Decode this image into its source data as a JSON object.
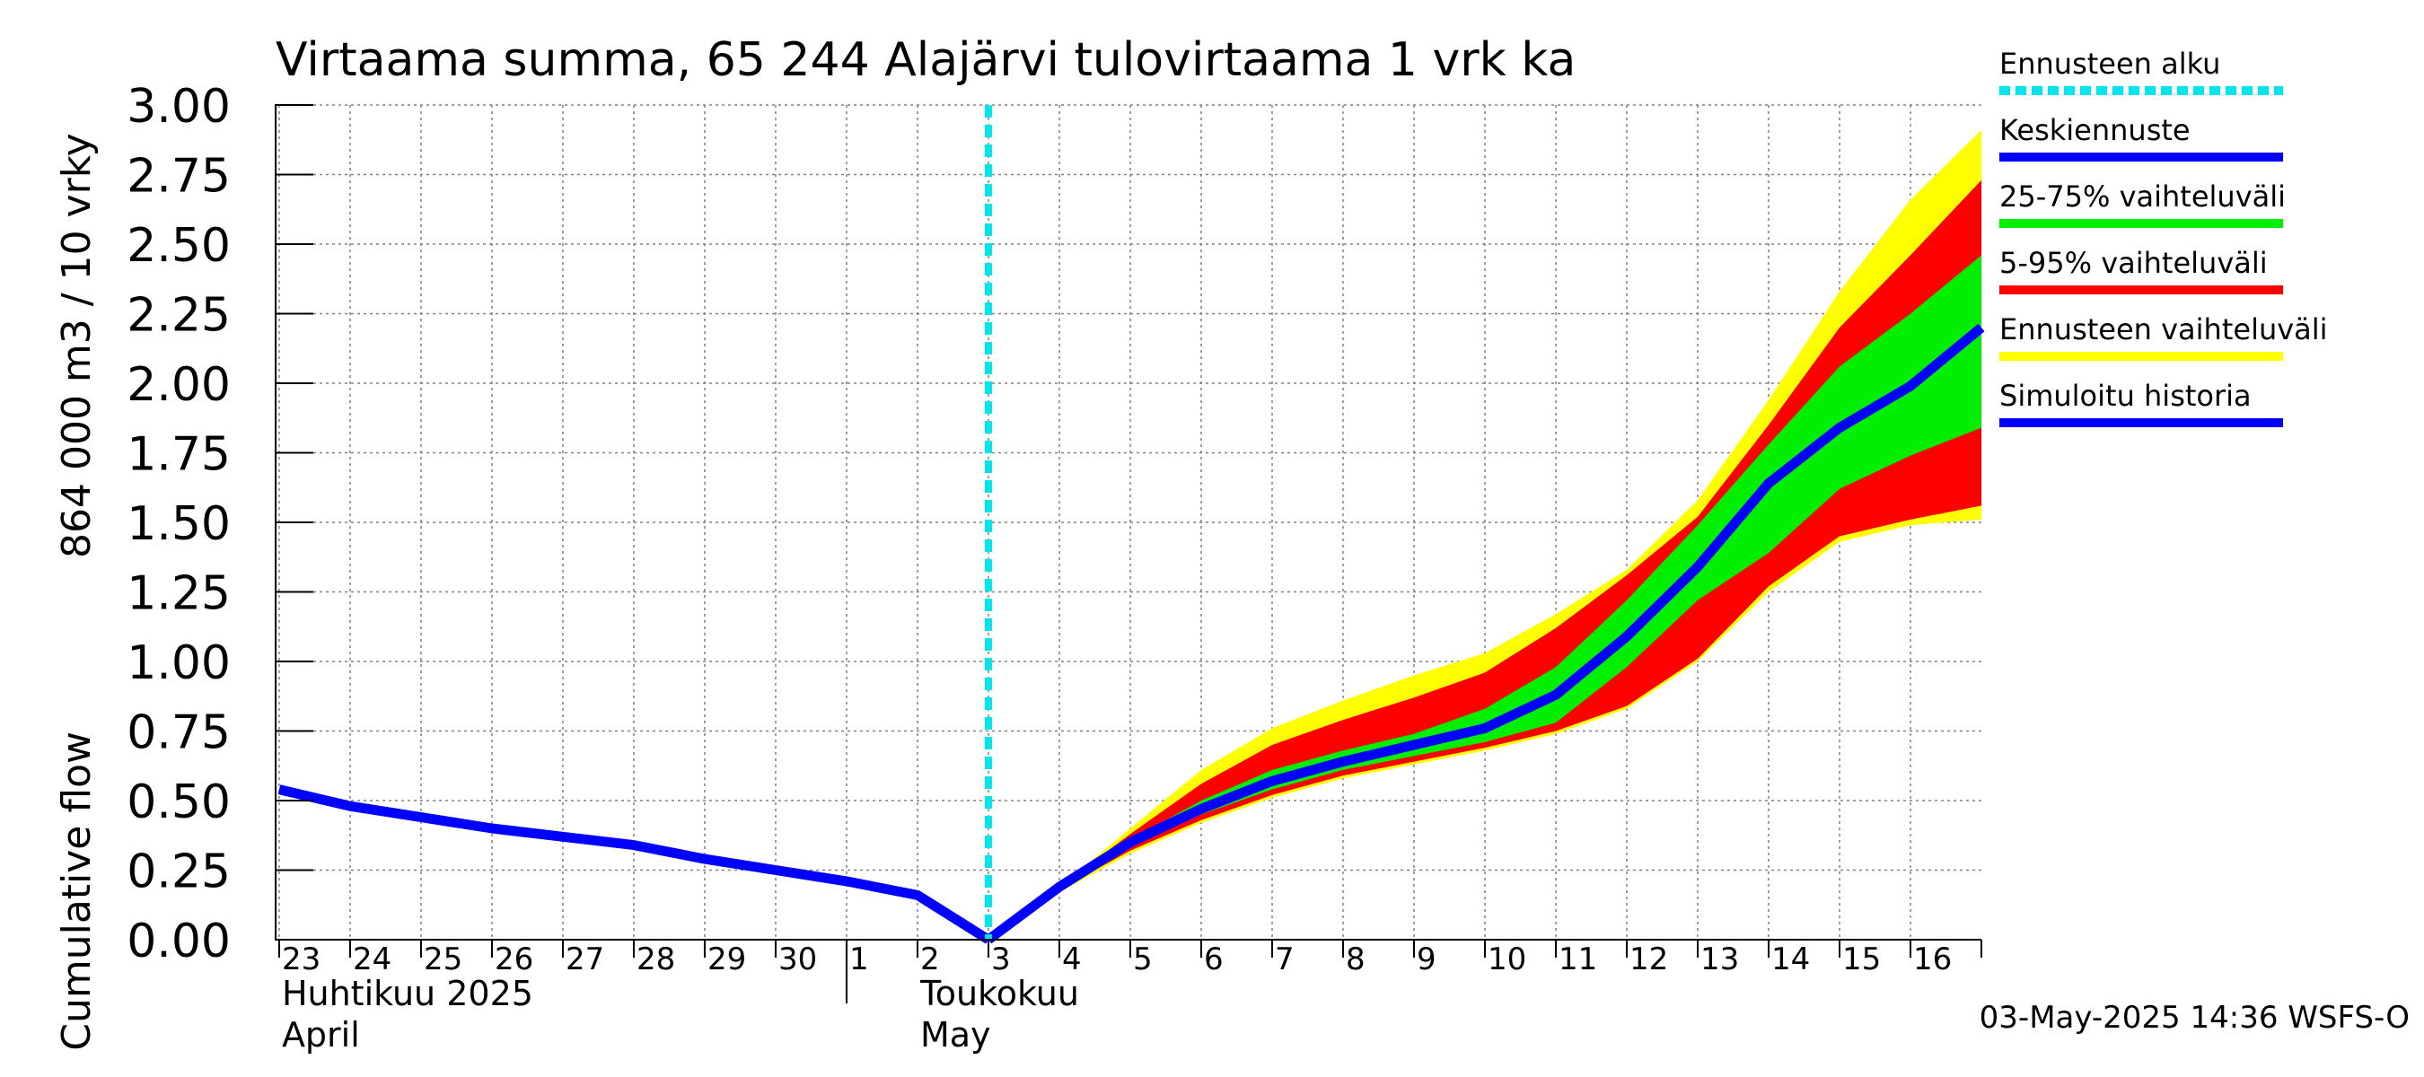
{
  "chart_data": {
    "type": "area",
    "title": "Virtaama summa, 65 244 Alajärvi tulovirtaama 1 vrk ka",
    "ylabel_top": "864 000 m3 / 10 vrky",
    "ylabel_bottom": "Cumulative flow",
    "ylim": [
      0,
      3.0
    ],
    "yticks": [
      "0.00",
      "0.25",
      "0.50",
      "0.75",
      "1.00",
      "1.25",
      "1.50",
      "1.75",
      "2.00",
      "2.25",
      "2.50",
      "2.75",
      "3.00"
    ],
    "xlim": [
      -0.05,
      24
    ],
    "day_labels": [
      "23",
      "24",
      "25",
      "26",
      "27",
      "28",
      "29",
      "30",
      "1",
      "2",
      "3",
      "4",
      "5",
      "6",
      "7",
      "8",
      "9",
      "10",
      "11",
      "12",
      "13",
      "14",
      "15",
      "16"
    ],
    "month_labels": [
      {
        "line1": "Huhtikuu  2025",
        "line2": "April",
        "day_index": 0
      },
      {
        "line1": "Toukokuu",
        "line2": "May",
        "day_index": 9
      }
    ],
    "month_boundary_day_index": 8,
    "forecast_start_day_index": 10,
    "grid": true,
    "timestamp": "03-May-2025 14:36 WSFS-O",
    "legend": [
      {
        "label": "Ennusteen alku",
        "color": "#00e5ee",
        "style": "dashed"
      },
      {
        "label": "Keskiennuste",
        "color": "#0000ff",
        "style": "solid"
      },
      {
        "label": "25-75% vaihteluväli",
        "color": "#00ee00",
        "style": "solid"
      },
      {
        "label": "5-95% vaihteluväli",
        "color": "#ff0000",
        "style": "solid"
      },
      {
        "label": "Ennusteen vaihteluväli",
        "color": "#ffff00",
        "style": "solid"
      },
      {
        "label": "Simuloitu historia",
        "color": "#0000ff",
        "style": "solid"
      }
    ],
    "history": {
      "x": [
        0,
        1,
        2,
        3,
        4,
        5,
        6,
        7,
        8,
        9,
        10
      ],
      "y": [
        0.54,
        0.48,
        0.44,
        0.4,
        0.37,
        0.34,
        0.29,
        0.25,
        0.21,
        0.16,
        0.0
      ]
    },
    "forecast_x": [
      10,
      11,
      12,
      13,
      14,
      15,
      16,
      17,
      18,
      19,
      20,
      21,
      22,
      23,
      24
    ],
    "range_full": {
      "low": [
        0.0,
        0.17,
        0.31,
        0.42,
        0.51,
        0.58,
        0.63,
        0.68,
        0.74,
        0.83,
        1.0,
        1.25,
        1.43,
        1.49,
        1.51
      ],
      "high": [
        0.0,
        0.19,
        0.4,
        0.61,
        0.76,
        0.86,
        0.95,
        1.03,
        1.17,
        1.33,
        1.58,
        1.94,
        2.33,
        2.66,
        2.91
      ]
    },
    "range_5_95": {
      "low": [
        0.0,
        0.18,
        0.32,
        0.43,
        0.52,
        0.59,
        0.64,
        0.69,
        0.75,
        0.84,
        1.01,
        1.27,
        1.45,
        1.51,
        1.56
      ],
      "high": [
        0.0,
        0.19,
        0.38,
        0.56,
        0.7,
        0.79,
        0.87,
        0.96,
        1.12,
        1.31,
        1.52,
        1.85,
        2.2,
        2.46,
        2.73
      ]
    },
    "range_25_75": {
      "low": [
        0.0,
        0.185,
        0.34,
        0.45,
        0.54,
        0.61,
        0.66,
        0.71,
        0.78,
        0.98,
        1.22,
        1.39,
        1.62,
        1.74,
        1.84
      ],
      "high": [
        0.0,
        0.19,
        0.36,
        0.5,
        0.61,
        0.68,
        0.74,
        0.83,
        0.98,
        1.22,
        1.49,
        1.78,
        2.06,
        2.25,
        2.46
      ]
    },
    "median": {
      "y": [
        0.0,
        0.19,
        0.35,
        0.47,
        0.57,
        0.64,
        0.7,
        0.76,
        0.88,
        1.09,
        1.34,
        1.64,
        1.84,
        1.99,
        2.2
      ]
    }
  }
}
